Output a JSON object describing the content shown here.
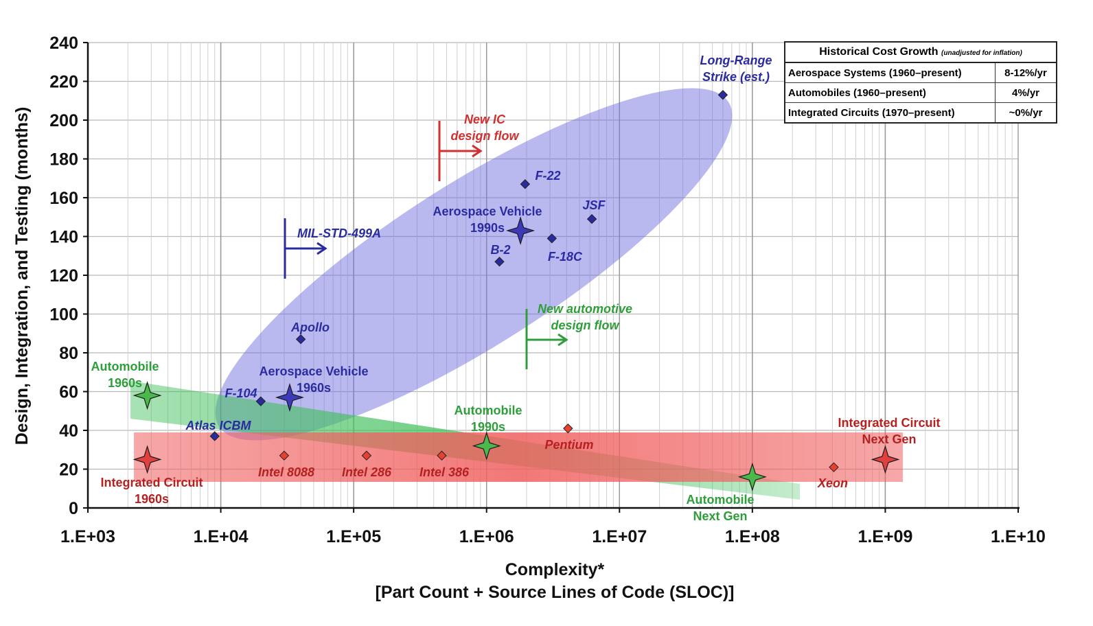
{
  "chart_data": {
    "type": "scatter",
    "xscale": "log",
    "xlim": [
      1000,
      10000000000
    ],
    "ylim": [
      0,
      240
    ],
    "grid": true,
    "xlabel": "Complexity*",
    "xlabel2": "[Part Count + Source Lines of Code (SLOC)]",
    "ylabel": "Design, Integration, and Testing (months)",
    "x_ticks": [
      "1.E+03",
      "1.E+04",
      "1.E+05",
      "1.E+06",
      "1.E+07",
      "1.E+08",
      "1.E+09",
      "1.E+10"
    ],
    "y_ticks": [
      0,
      20,
      40,
      60,
      80,
      100,
      120,
      140,
      160,
      180,
      200,
      220,
      240
    ],
    "series": [
      {
        "category": "aerospace",
        "color": "#2b2ba0",
        "points": [
          {
            "label": "Atlas ICBM",
            "x": 9000,
            "y": 37
          },
          {
            "label": "F-104",
            "x": 20000,
            "y": 55
          },
          {
            "label": "Apollo",
            "x": 40000,
            "y": 87
          },
          {
            "label": "B-2",
            "x": 1250000,
            "y": 127
          },
          {
            "label": "F-18C",
            "x": 3100000,
            "y": 139
          },
          {
            "label": "JSF",
            "x": 6200000,
            "y": 149
          },
          {
            "label": "F-22",
            "x": 1950000,
            "y": 167
          },
          {
            "label": "Long-Range Strike (est.)",
            "x": 60000000,
            "y": 213
          }
        ],
        "averages": [
          {
            "label": "Aerospace Vehicle 1960s",
            "x": 33000,
            "y": 57
          },
          {
            "label": "Aerospace Vehicle 1990s",
            "x": 1800000,
            "y": 143
          }
        ]
      },
      {
        "category": "integrated-circuit",
        "color": "#c62828",
        "points": [
          {
            "label": "Intel 8088",
            "x": 30000,
            "y": 27
          },
          {
            "label": "Intel 286",
            "x": 125000,
            "y": 27
          },
          {
            "label": "Intel 386",
            "x": 460000,
            "y": 27
          },
          {
            "label": "Pentium",
            "x": 4100000,
            "y": 41
          },
          {
            "label": "Xeon",
            "x": 410000000,
            "y": 21
          }
        ],
        "averages": [
          {
            "label": "Integrated Circuit 1960s",
            "x": 2800,
            "y": 25
          },
          {
            "label": "Integrated Circuit Next Gen",
            "x": 1000000000,
            "y": 25
          }
        ]
      },
      {
        "category": "automobile",
        "color": "#2e9e3a",
        "points": [],
        "averages": [
          {
            "label": "Automobile 1960s",
            "x": 2800,
            "y": 58
          },
          {
            "label": "Automobile 1990s",
            "x": 1000000,
            "y": 32
          },
          {
            "label": "Automobile Next Gen",
            "x": 100000000,
            "y": 16
          }
        ]
      }
    ],
    "annotations": [
      {
        "text": "MIL-STD-499A",
        "x": 30000,
        "y": 135,
        "color": "#2b2ba0"
      },
      {
        "text": "New IC design flow",
        "x": 450000,
        "y": 183,
        "color": "#c62828"
      },
      {
        "text": "New automotive design flow",
        "x": 2000000,
        "y": 87,
        "color": "#2e9e3a"
      }
    ],
    "labels": {
      "atlas": "Atlas ICBM",
      "f104": "F-104",
      "apollo": "Apollo",
      "aero60_1": "Aerospace Vehicle",
      "aero60_2": "1960s",
      "aero90_1": "Aerospace Vehicle",
      "aero90_2": "1990s",
      "b2": "B-2",
      "f18c": "F-18C",
      "jsf": "JSF",
      "f22": "F-22",
      "lrs_1": "Long-Range",
      "lrs_2": "Strike (est.)",
      "milstd": "MIL-STD-499A",
      "newic_1": "New IC",
      "newic_2": "design flow",
      "newauto_1": "New automotive",
      "newauto_2": "design flow",
      "auto60_1": "Automobile",
      "auto60_2": "1960s",
      "auto90_1": "Automobile",
      "auto90_2": "1990s",
      "autong_1": "Automobile",
      "autong_2": "Next Gen",
      "ic60_1": "Integrated Circuit",
      "ic60_2": "1960s",
      "icng_1": "Integrated Circuit",
      "icng_2": "Next Gen",
      "i8088": "Intel 8088",
      "i286": "Intel 286",
      "i386": "Intel 386",
      "pentium": "Pentium",
      "xeon": "Xeon"
    },
    "legend_table": {
      "title": "Historical Cost Growth",
      "title_note": "(unadjusted for inflation)",
      "rows": [
        {
          "name": "Aerospace Systems  (1960–present)",
          "value": "8-12%/yr"
        },
        {
          "name": "Automobiles (1960–present)",
          "value": "4%/yr"
        },
        {
          "name": "Integrated Circuits (1970–present)",
          "value": "~0%/yr"
        }
      ]
    }
  }
}
